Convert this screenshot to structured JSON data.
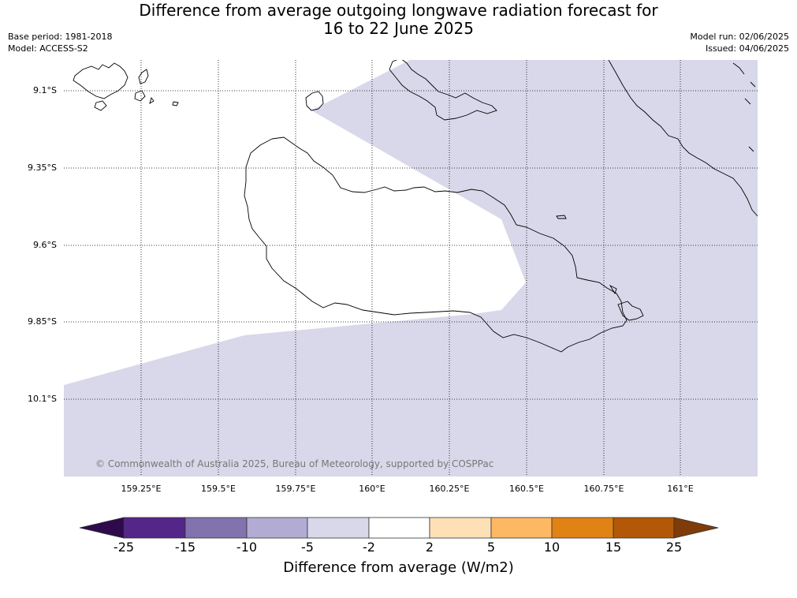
{
  "title": {
    "line1": "Difference from average outgoing longwave radiation forecast for",
    "line2": "16 to 22 June 2025"
  },
  "meta": {
    "base_period": "Base period: 1981-2018",
    "model": "Model: ACCESS-S2",
    "model_run": "Model run: 02/06/2025",
    "issued": "Issued: 04/06/2025"
  },
  "map": {
    "lat_labels": [
      "9.1°S",
      "9.35°S",
      "9.6°S",
      "9.85°S",
      "10.1°S"
    ],
    "lon_labels": [
      "159.25°E",
      "159.5°E",
      "159.75°E",
      "160°E",
      "160.25°E",
      "160.5°E",
      "160.75°E",
      "161°E"
    ],
    "copyright": "© Commonwealth of Australia 2025, Bureau of Meteorology, supported by COSPPac"
  },
  "colorbar": {
    "title": "Difference from average (W/m2)",
    "ticks": [
      "-25",
      "-15",
      "-10",
      "-5",
      "-2",
      "2",
      "5",
      "10",
      "15",
      "25"
    ],
    "colors": [
      "#2e0a4d",
      "#54268a",
      "#8273ae",
      "#b2abd2",
      "#d8d8ea",
      "#ffffff",
      "#fee0b6",
      "#fdb863",
      "#e08214",
      "#b35806",
      "#7f3b08"
    ]
  }
}
